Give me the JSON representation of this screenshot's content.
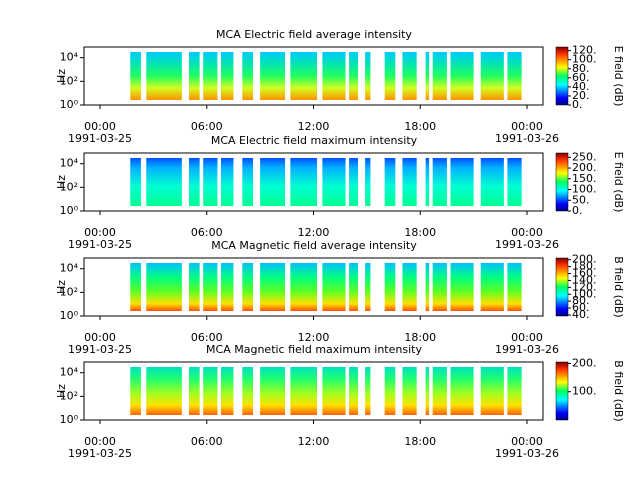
{
  "chart_data": [
    {
      "type": "spectrogram",
      "title": "MCA  Electric field average intensity",
      "ylabel": "Hz",
      "log_y": true,
      "xlim": [
        -0.9,
        24.9
      ],
      "xticks": [
        {
          "value": 0,
          "label": "00:00"
        },
        {
          "value": 6,
          "label": "06:00"
        },
        {
          "value": 12,
          "label": "12:00"
        },
        {
          "value": 18,
          "label": "18:00"
        },
        {
          "value": 24,
          "label": "00:00"
        }
      ],
      "dates": [
        "1991-03-25",
        "1991-03-26"
      ],
      "ylim": [
        1,
        80000
      ],
      "yticks": [
        {
          "value": 1,
          "label": "10⁰"
        },
        {
          "value": 100,
          "label": "10²"
        },
        {
          "value": 10000,
          "label": "10⁴"
        }
      ],
      "segments": [
        [
          1.7,
          2.3
        ],
        [
          2.6,
          4.6
        ],
        [
          5.0,
          5.6
        ],
        [
          5.8,
          6.6
        ],
        [
          6.8,
          7.5
        ],
        [
          8.0,
          8.6
        ],
        [
          9.0,
          10.4
        ],
        [
          10.7,
          12.2
        ],
        [
          12.5,
          13.8
        ],
        [
          14.0,
          14.5
        ],
        [
          14.9,
          15.2
        ],
        [
          16.0,
          16.6
        ],
        [
          17.0,
          17.8
        ],
        [
          18.3,
          18.5
        ],
        [
          18.7,
          19.5
        ],
        [
          19.7,
          21.0
        ],
        [
          21.4,
          22.7
        ],
        [
          22.9,
          23.7
        ]
      ],
      "colorbar": {
        "label": "E field (dB)",
        "lim": [
          0,
          128
        ],
        "ticks": [
          {
            "value": 0,
            "label": "0."
          },
          {
            "value": 20,
            "label": "20."
          },
          {
            "value": 40,
            "label": "40."
          },
          {
            "value": 60,
            "label": "60."
          },
          {
            "value": 80,
            "label": "80."
          },
          {
            "value": 100,
            "label": "100."
          },
          {
            "value": 120,
            "label": "120."
          }
        ]
      }
    },
    {
      "type": "spectrogram",
      "title": "MCA  Electric field maximum intensity",
      "ylabel": "Hz",
      "log_y": true,
      "xlim": [
        -0.9,
        24.9
      ],
      "xticks": [
        {
          "value": 0,
          "label": "00:00"
        },
        {
          "value": 6,
          "label": "06:00"
        },
        {
          "value": 12,
          "label": "12:00"
        },
        {
          "value": 18,
          "label": "18:00"
        },
        {
          "value": 24,
          "label": "00:00"
        }
      ],
      "dates": [
        "1991-03-25",
        "1991-03-26"
      ],
      "ylim": [
        1,
        80000
      ],
      "yticks": [
        {
          "value": 1,
          "label": "10⁰"
        },
        {
          "value": 100,
          "label": "10²"
        },
        {
          "value": 10000,
          "label": "10⁴"
        }
      ],
      "segments": [
        [
          1.7,
          2.3
        ],
        [
          2.6,
          4.6
        ],
        [
          5.0,
          5.6
        ],
        [
          5.8,
          6.6
        ],
        [
          6.8,
          7.5
        ],
        [
          8.0,
          8.6
        ],
        [
          9.0,
          10.4
        ],
        [
          10.7,
          12.2
        ],
        [
          12.5,
          13.8
        ],
        [
          14.0,
          14.5
        ],
        [
          14.9,
          15.2
        ],
        [
          16.0,
          16.6
        ],
        [
          17.0,
          17.8
        ],
        [
          18.3,
          18.5
        ],
        [
          18.7,
          19.5
        ],
        [
          19.7,
          21.0
        ],
        [
          21.4,
          22.7
        ],
        [
          22.9,
          23.7
        ]
      ],
      "colorbar": {
        "label": "E field (dB)",
        "lim": [
          0,
          270
        ],
        "ticks": [
          {
            "value": 0,
            "label": "0."
          },
          {
            "value": 50,
            "label": "50."
          },
          {
            "value": 100,
            "label": "100."
          },
          {
            "value": 150,
            "label": "150."
          },
          {
            "value": 200,
            "label": "200."
          },
          {
            "value": 250,
            "label": "250."
          }
        ]
      }
    },
    {
      "type": "spectrogram",
      "title": "MCA  Magnetic field average intensity",
      "ylabel": "Hz",
      "log_y": true,
      "xlim": [
        -0.9,
        24.9
      ],
      "xticks": [
        {
          "value": 0,
          "label": "00:00"
        },
        {
          "value": 6,
          "label": "06:00"
        },
        {
          "value": 12,
          "label": "12:00"
        },
        {
          "value": 18,
          "label": "18:00"
        },
        {
          "value": 24,
          "label": "00:00"
        }
      ],
      "dates": [
        "1991-03-25",
        "1991-03-26"
      ],
      "ylim": [
        1,
        80000
      ],
      "yticks": [
        {
          "value": 1,
          "label": "10⁰"
        },
        {
          "value": 100,
          "label": "10²"
        },
        {
          "value": 10000,
          "label": "10⁴"
        }
      ],
      "segments": [
        [
          1.7,
          2.3
        ],
        [
          2.6,
          4.6
        ],
        [
          5.0,
          5.6
        ],
        [
          5.8,
          6.6
        ],
        [
          6.8,
          7.5
        ],
        [
          8.0,
          8.6
        ],
        [
          9.0,
          10.4
        ],
        [
          10.7,
          12.2
        ],
        [
          12.5,
          13.8
        ],
        [
          14.0,
          14.5
        ],
        [
          14.9,
          15.2
        ],
        [
          16.0,
          16.6
        ],
        [
          17.0,
          17.8
        ],
        [
          18.3,
          18.5
        ],
        [
          18.7,
          19.5
        ],
        [
          19.7,
          21.0
        ],
        [
          21.4,
          22.7
        ],
        [
          22.9,
          23.7
        ]
      ],
      "colorbar": {
        "label": "B field (dB)",
        "lim": [
          37,
          205
        ],
        "ticks": [
          {
            "value": 40,
            "label": "40."
          },
          {
            "value": 60,
            "label": "60."
          },
          {
            "value": 80,
            "label": "80."
          },
          {
            "value": 100,
            "label": "100."
          },
          {
            "value": 120,
            "label": "120."
          },
          {
            "value": 140,
            "label": "140."
          },
          {
            "value": 160,
            "label": "160."
          },
          {
            "value": 180,
            "label": "180."
          },
          {
            "value": 200,
            "label": "200."
          }
        ]
      }
    },
    {
      "type": "spectrogram",
      "title": "MCA  Magnetic field maximum intensity",
      "ylabel": "Hz",
      "log_y": true,
      "xlim": [
        -0.9,
        24.9
      ],
      "xticks": [
        {
          "value": 0,
          "label": "00:00"
        },
        {
          "value": 6,
          "label": "06:00"
        },
        {
          "value": 12,
          "label": "12:00"
        },
        {
          "value": 18,
          "label": "18:00"
        },
        {
          "value": 24,
          "label": "00:00"
        }
      ],
      "dates": [
        "1991-03-25",
        "1991-03-26"
      ],
      "ylim": [
        1,
        80000
      ],
      "yticks": [
        {
          "value": 1,
          "label": "10⁰"
        },
        {
          "value": 100,
          "label": "10²"
        },
        {
          "value": 10000,
          "label": "10⁴"
        }
      ],
      "segments": [
        [
          1.7,
          2.3
        ],
        [
          2.6,
          4.6
        ],
        [
          5.0,
          5.6
        ],
        [
          5.8,
          6.6
        ],
        [
          6.8,
          7.5
        ],
        [
          8.0,
          8.6
        ],
        [
          9.0,
          10.4
        ],
        [
          10.7,
          12.2
        ],
        [
          12.5,
          13.8
        ],
        [
          14.0,
          14.5
        ],
        [
          14.9,
          15.2
        ],
        [
          16.0,
          16.6
        ],
        [
          17.0,
          17.8
        ],
        [
          18.3,
          18.5
        ],
        [
          18.7,
          19.5
        ],
        [
          19.7,
          21.0
        ],
        [
          21.4,
          22.7
        ],
        [
          22.9,
          23.7
        ]
      ],
      "colorbar": {
        "label": "B field (dB)",
        "lim": [
          0,
          205
        ],
        "ticks": [
          {
            "value": 100,
            "label": "100."
          },
          {
            "value": 200,
            "label": "200."
          }
        ]
      }
    }
  ]
}
